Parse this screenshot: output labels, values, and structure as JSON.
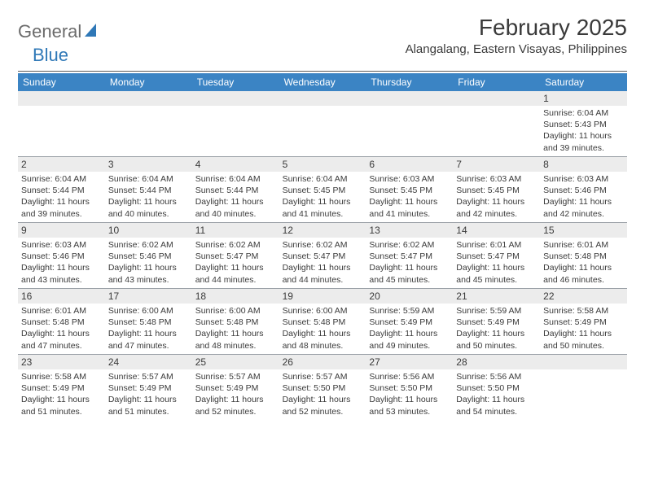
{
  "brand": {
    "part1": "General",
    "part2": "Blue"
  },
  "title": "February 2025",
  "location": "Alangalang, Eastern Visayas, Philippines",
  "colors": {
    "header_bar": "#3b84c4",
    "daynum_bg": "#ececec",
    "rule": "#9aa0a6",
    "text": "#3a3a3a",
    "brand_blue": "#2f78b7",
    "brand_gray": "#6b6b6b"
  },
  "dow": [
    "Sunday",
    "Monday",
    "Tuesday",
    "Wednesday",
    "Thursday",
    "Friday",
    "Saturday"
  ],
  "weeks": [
    [
      null,
      null,
      null,
      null,
      null,
      null,
      {
        "d": "1",
        "sr": "6:04 AM",
        "ss": "5:43 PM",
        "dl": "11 hours and 39 minutes."
      }
    ],
    [
      {
        "d": "2",
        "sr": "6:04 AM",
        "ss": "5:44 PM",
        "dl": "11 hours and 39 minutes."
      },
      {
        "d": "3",
        "sr": "6:04 AM",
        "ss": "5:44 PM",
        "dl": "11 hours and 40 minutes."
      },
      {
        "d": "4",
        "sr": "6:04 AM",
        "ss": "5:44 PM",
        "dl": "11 hours and 40 minutes."
      },
      {
        "d": "5",
        "sr": "6:04 AM",
        "ss": "5:45 PM",
        "dl": "11 hours and 41 minutes."
      },
      {
        "d": "6",
        "sr": "6:03 AM",
        "ss": "5:45 PM",
        "dl": "11 hours and 41 minutes."
      },
      {
        "d": "7",
        "sr": "6:03 AM",
        "ss": "5:45 PM",
        "dl": "11 hours and 42 minutes."
      },
      {
        "d": "8",
        "sr": "6:03 AM",
        "ss": "5:46 PM",
        "dl": "11 hours and 42 minutes."
      }
    ],
    [
      {
        "d": "9",
        "sr": "6:03 AM",
        "ss": "5:46 PM",
        "dl": "11 hours and 43 minutes."
      },
      {
        "d": "10",
        "sr": "6:02 AM",
        "ss": "5:46 PM",
        "dl": "11 hours and 43 minutes."
      },
      {
        "d": "11",
        "sr": "6:02 AM",
        "ss": "5:47 PM",
        "dl": "11 hours and 44 minutes."
      },
      {
        "d": "12",
        "sr": "6:02 AM",
        "ss": "5:47 PM",
        "dl": "11 hours and 44 minutes."
      },
      {
        "d": "13",
        "sr": "6:02 AM",
        "ss": "5:47 PM",
        "dl": "11 hours and 45 minutes."
      },
      {
        "d": "14",
        "sr": "6:01 AM",
        "ss": "5:47 PM",
        "dl": "11 hours and 45 minutes."
      },
      {
        "d": "15",
        "sr": "6:01 AM",
        "ss": "5:48 PM",
        "dl": "11 hours and 46 minutes."
      }
    ],
    [
      {
        "d": "16",
        "sr": "6:01 AM",
        "ss": "5:48 PM",
        "dl": "11 hours and 47 minutes."
      },
      {
        "d": "17",
        "sr": "6:00 AM",
        "ss": "5:48 PM",
        "dl": "11 hours and 47 minutes."
      },
      {
        "d": "18",
        "sr": "6:00 AM",
        "ss": "5:48 PM",
        "dl": "11 hours and 48 minutes."
      },
      {
        "d": "19",
        "sr": "6:00 AM",
        "ss": "5:48 PM",
        "dl": "11 hours and 48 minutes."
      },
      {
        "d": "20",
        "sr": "5:59 AM",
        "ss": "5:49 PM",
        "dl": "11 hours and 49 minutes."
      },
      {
        "d": "21",
        "sr": "5:59 AM",
        "ss": "5:49 PM",
        "dl": "11 hours and 50 minutes."
      },
      {
        "d": "22",
        "sr": "5:58 AM",
        "ss": "5:49 PM",
        "dl": "11 hours and 50 minutes."
      }
    ],
    [
      {
        "d": "23",
        "sr": "5:58 AM",
        "ss": "5:49 PM",
        "dl": "11 hours and 51 minutes."
      },
      {
        "d": "24",
        "sr": "5:57 AM",
        "ss": "5:49 PM",
        "dl": "11 hours and 51 minutes."
      },
      {
        "d": "25",
        "sr": "5:57 AM",
        "ss": "5:49 PM",
        "dl": "11 hours and 52 minutes."
      },
      {
        "d": "26",
        "sr": "5:57 AM",
        "ss": "5:50 PM",
        "dl": "11 hours and 52 minutes."
      },
      {
        "d": "27",
        "sr": "5:56 AM",
        "ss": "5:50 PM",
        "dl": "11 hours and 53 minutes."
      },
      {
        "d": "28",
        "sr": "5:56 AM",
        "ss": "5:50 PM",
        "dl": "11 hours and 54 minutes."
      },
      null
    ]
  ],
  "labels": {
    "sunrise": "Sunrise:",
    "sunset": "Sunset:",
    "daylight": "Daylight:"
  }
}
